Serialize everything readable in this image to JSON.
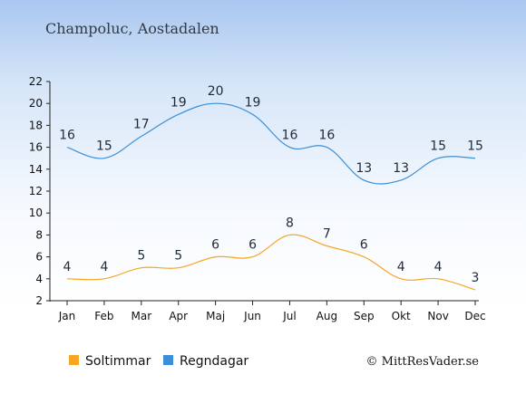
{
  "title": "Champoluc, Aostadalen",
  "credit": "© MittResVader.se",
  "chart_data": {
    "type": "line",
    "title": "Champoluc, Aostadalen",
    "categories": [
      "Jan",
      "Feb",
      "Mar",
      "Apr",
      "Maj",
      "Jun",
      "Jul",
      "Aug",
      "Sep",
      "Okt",
      "Nov",
      "Dec"
    ],
    "ylim": [
      2,
      22
    ],
    "yticks": [
      2,
      4,
      6,
      8,
      10,
      12,
      14,
      16,
      18,
      20,
      22
    ],
    "grid": false,
    "legend_position": "bottom-left",
    "series": [
      {
        "name": "Soltimmar",
        "color": "#f5a623",
        "values": [
          4,
          4,
          5,
          5,
          6,
          6,
          8,
          7,
          6,
          4,
          4,
          3
        ]
      },
      {
        "name": "Regndagar",
        "color": "#3a8fd8",
        "values": [
          16,
          15,
          17,
          19,
          20,
          19,
          16,
          16,
          13,
          13,
          15,
          15
        ]
      }
    ]
  }
}
